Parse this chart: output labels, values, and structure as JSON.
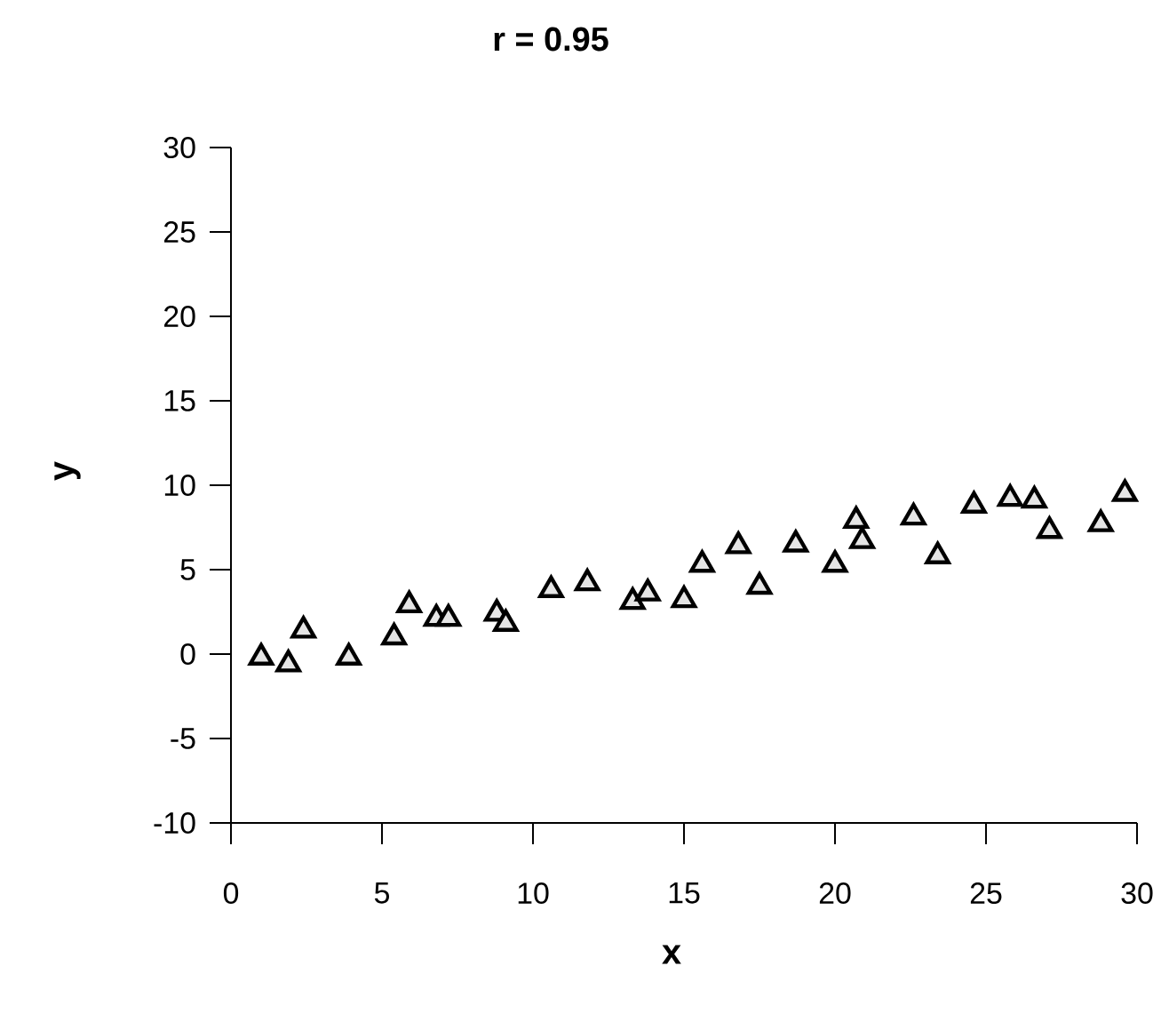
{
  "chart_data": {
    "type": "scatter",
    "title": "r =  0.95",
    "xlabel": "x",
    "ylabel": "y",
    "xlim": [
      0,
      30
    ],
    "ylim": [
      -10,
      30
    ],
    "xticks": [
      0,
      5,
      10,
      15,
      20,
      25,
      30
    ],
    "yticks": [
      -10,
      -5,
      0,
      5,
      10,
      15,
      20,
      25,
      30
    ],
    "marker": "triangle",
    "grid": false,
    "series": [
      {
        "color": "#000000",
        "x": [
          1.0,
          1.9,
          2.4,
          3.9,
          5.4,
          5.9,
          6.8,
          7.2,
          8.8,
          9.1,
          10.6,
          11.8,
          13.3,
          13.8,
          15.0,
          15.6,
          16.8,
          17.5,
          18.7,
          20.0,
          20.7,
          20.9,
          22.6,
          23.4,
          24.6,
          25.8,
          26.6,
          27.1,
          28.8,
          29.6
        ],
        "values": [
          -0.2,
          -0.6,
          1.4,
          -0.2,
          1.0,
          2.9,
          2.1,
          2.1,
          2.4,
          1.8,
          3.8,
          4.2,
          3.1,
          3.6,
          3.2,
          5.3,
          6.4,
          4.0,
          6.5,
          5.3,
          7.9,
          6.7,
          8.1,
          5.8,
          8.8,
          9.2,
          9.1,
          7.3,
          7.7,
          9.5
        ]
      }
    ]
  }
}
